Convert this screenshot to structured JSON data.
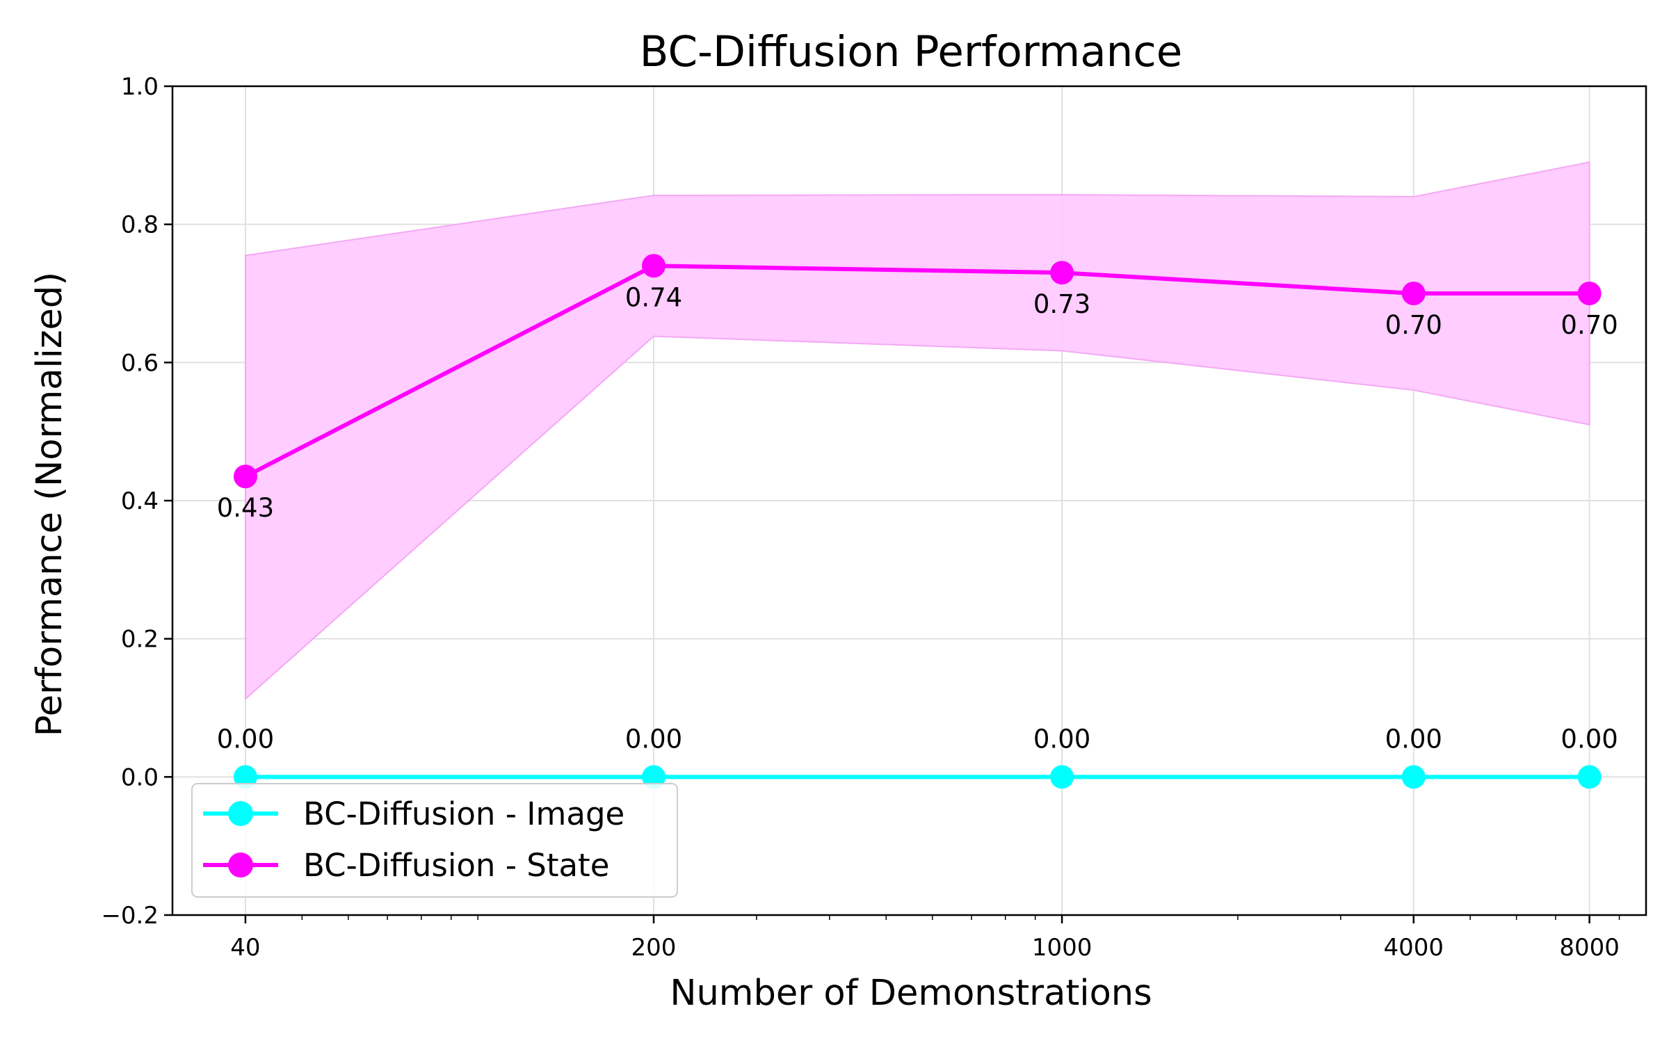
{
  "chart_data": {
    "type": "line",
    "title": "BC-Diffusion Performance",
    "xlabel": "Number of Demonstrations",
    "ylabel": "Performance (Normalized)",
    "xscale": "log",
    "x": [
      40,
      200,
      1000,
      4000,
      8000
    ],
    "xticks": [
      "40",
      "200",
      "1000",
      "4000",
      "8000"
    ],
    "xlim": [
      30,
      10000
    ],
    "ylim": [
      -0.2,
      1.0
    ],
    "yticks": [
      "−0.2",
      "0.0",
      "0.2",
      "0.4",
      "0.6",
      "0.8",
      "1.0"
    ],
    "grid": true,
    "legend_position": "lower-left",
    "series": [
      {
        "name": "BC-Diffusion - Image",
        "color": "#00FFFF",
        "values": [
          0.0,
          0.0,
          0.0,
          0.0,
          0.0
        ],
        "labels": [
          "0.00",
          "0.00",
          "0.00",
          "0.00",
          "0.00"
        ]
      },
      {
        "name": "BC-Diffusion - State",
        "color": "#FF00FF",
        "values": [
          0.435,
          0.74,
          0.73,
          0.7,
          0.7
        ],
        "labels": [
          "0.43",
          "0.74",
          "0.73",
          "0.70",
          "0.70"
        ],
        "band_upper": [
          0.755,
          0.842,
          0.843,
          0.84,
          0.89
        ],
        "band_lower": [
          0.113,
          0.638,
          0.617,
          0.56,
          0.51
        ],
        "band_color": "#FFC8FF"
      }
    ]
  }
}
